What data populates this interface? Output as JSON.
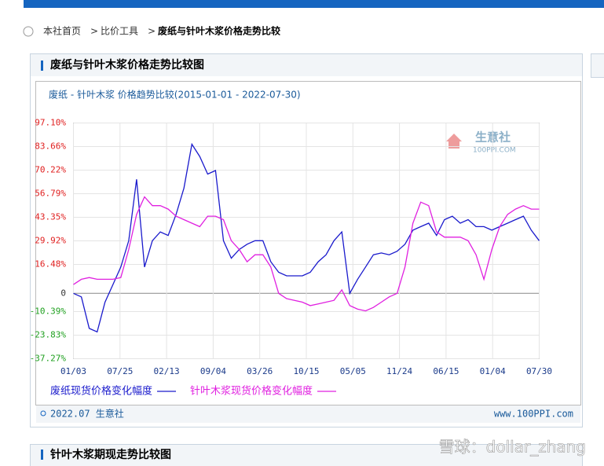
{
  "breadcrumb": [
    "本社首页",
    "比价工具",
    "废纸与针叶木浆价格走势比较"
  ],
  "panel_title": "废纸与针叶木浆价格走势比较图",
  "chart_data": {
    "type": "line",
    "title": "废纸 - 针叶木浆 价格趋势比较(2015-01-01 - 2022-07-30)",
    "logo": [
      "生意社",
      "100PPI.COM"
    ],
    "xtick_labels": [
      "01/03",
      "07/25",
      "02/13",
      "09/04",
      "03/26",
      "10/15",
      "05/05",
      "11/24",
      "06/15",
      "01/04",
      "07/30"
    ],
    "ylim": [
      -37.27,
      97.1
    ],
    "yticks": [
      {
        "value": 97.1,
        "label": "97.10%"
      },
      {
        "value": 83.66,
        "label": "83.66%"
      },
      {
        "value": 70.22,
        "label": "70.22%"
      },
      {
        "value": 56.79,
        "label": "56.79%"
      },
      {
        "value": 43.35,
        "label": "43.35%"
      },
      {
        "value": 29.92,
        "label": "29.92%"
      },
      {
        "value": 16.48,
        "label": "16.48%"
      },
      0,
      {
        "value": -10.39,
        "label": "-10.39%"
      },
      {
        "value": -23.83,
        "label": "-23.83%"
      },
      {
        "value": -37.27,
        "label": "-37.27%"
      }
    ],
    "grid": true,
    "series": [
      {
        "name": "废纸现货价格变化幅度",
        "color": "#1a1acc",
        "values": [
          0,
          -2,
          -20,
          -22,
          -5,
          5,
          15,
          30,
          65,
          15,
          30,
          35,
          33,
          45,
          60,
          85,
          78,
          68,
          70,
          30,
          20,
          25,
          28,
          30,
          30,
          18,
          12,
          10,
          10,
          10,
          12,
          18,
          22,
          30,
          35,
          0,
          8,
          15,
          22,
          23,
          22,
          24,
          28,
          36,
          38,
          40,
          33,
          42,
          44,
          40,
          42,
          38,
          38,
          36,
          38,
          40,
          42,
          44,
          36,
          30
        ]
      },
      {
        "name": "针叶木浆现货价格变化幅度",
        "color": "#e020e0",
        "values": [
          5,
          8,
          9,
          8,
          8,
          8,
          9,
          25,
          45,
          55,
          50,
          50,
          48,
          44,
          42,
          40,
          38,
          44,
          44,
          42,
          30,
          25,
          18,
          22,
          22,
          15,
          0,
          -3,
          -4,
          -5,
          -7,
          -6,
          -5,
          -4,
          2,
          -7,
          -9,
          -10,
          -8,
          -5,
          -2,
          0,
          15,
          40,
          52,
          50,
          35,
          32,
          32,
          32,
          30,
          22,
          8,
          25,
          38,
          45,
          48,
          50,
          48,
          48
        ]
      }
    ]
  },
  "footer": {
    "left": "2022.07 生意社",
    "right": "www.100PPI.com"
  },
  "next_panel_title": "针叶木浆期现走势比较图",
  "watermark": "雪球：dollar_zhang"
}
